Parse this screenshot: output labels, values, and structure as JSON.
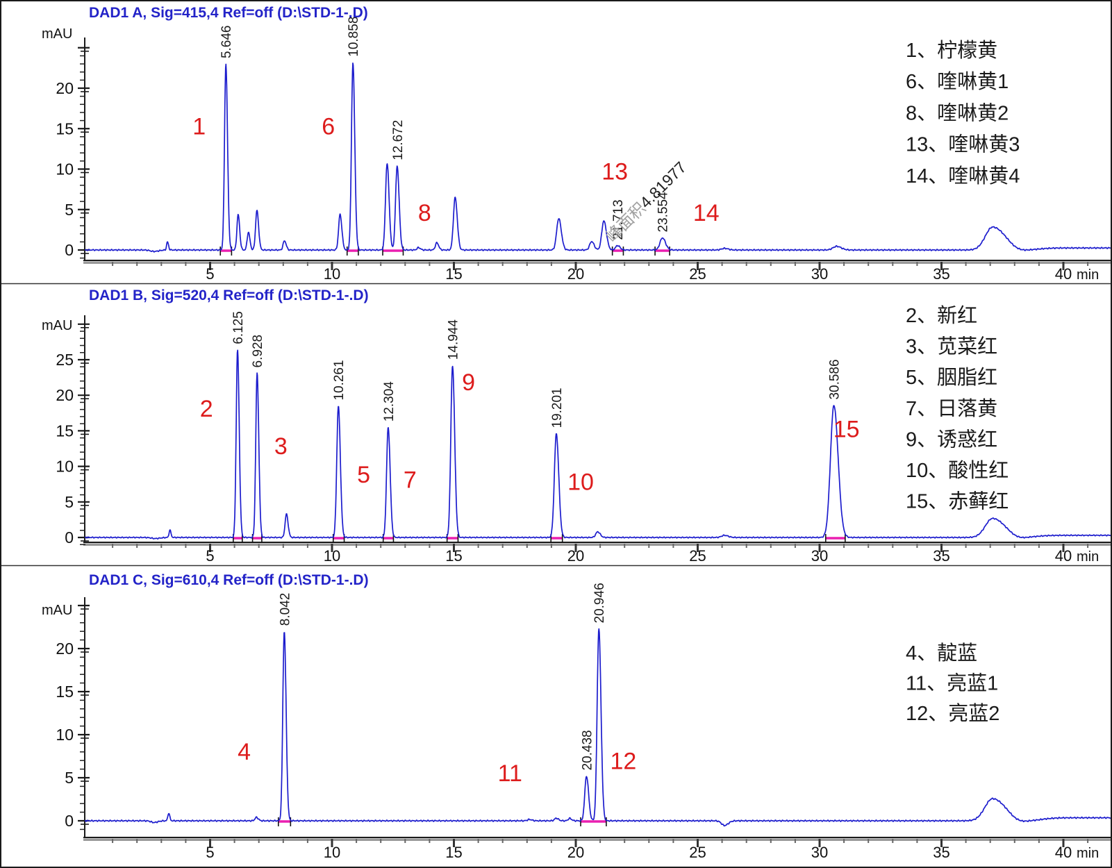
{
  "chart_data": [
    {
      "type": "line",
      "panel": "A",
      "title": "DAD1 A, Sig=415,4 Ref=off (D:\\STD-1-.D)",
      "xlabel": "min",
      "ylabel": "mAU",
      "xlim": [
        0,
        41.7
      ],
      "ylim": [
        -1.5,
        26
      ],
      "yticks": [
        0,
        5,
        10,
        15,
        20
      ],
      "xticks": [
        5,
        10,
        15,
        20,
        25,
        30,
        35,
        40
      ],
      "minor_step": 1,
      "trace_color": "#1c1ccd",
      "peaks": [
        [
          2.7,
          -0.18,
          0.15
        ],
        [
          3.25,
          1.0,
          0.035
        ],
        [
          5.646,
          23.0,
          0.055,
          "5.646"
        ],
        [
          6.15,
          4.4,
          0.05
        ],
        [
          6.57,
          2.2,
          0.05
        ],
        [
          6.92,
          4.9,
          0.055
        ],
        [
          8.05,
          1.15,
          0.055
        ],
        [
          10.33,
          4.4,
          0.06
        ],
        [
          10.858,
          23.2,
          0.06,
          "10.858"
        ],
        [
          12.26,
          10.7,
          0.065
        ],
        [
          12.672,
          10.4,
          0.065,
          "12.672"
        ],
        [
          13.55,
          0.3,
          0.06
        ],
        [
          14.3,
          0.9,
          0.06
        ],
        [
          15.05,
          6.5,
          0.07
        ],
        [
          19.3,
          3.9,
          0.085
        ],
        [
          20.65,
          1.05,
          0.08
        ],
        [
          21.15,
          3.6,
          0.085
        ],
        [
          21.713,
          0.55,
          0.08,
          "21.713"
        ],
        [
          23.554,
          1.5,
          0.1,
          "23.554"
        ],
        [
          26.1,
          0.2,
          0.12
        ],
        [
          30.7,
          0.45,
          0.15
        ],
        [
          37.1,
          2.85,
          0.3,
          null,
          1.8
        ],
        [
          38.3,
          -0.3,
          0.45
        ]
      ],
      "red_labels": [
        [
          "1",
          4.55,
          14.3
        ],
        [
          "6",
          9.85,
          14.3
        ],
        [
          "8",
          13.8,
          3.6
        ],
        [
          "13",
          21.6,
          8.7
        ],
        [
          "14",
          25.35,
          3.6
        ]
      ],
      "legend": [
        [
          "1",
          "柠檬黄"
        ],
        [
          "6",
          "喹啉黄1"
        ],
        [
          "8",
          "喹啉黄2"
        ],
        [
          "13",
          "喹啉黄3"
        ],
        [
          "14",
          "喹啉黄4"
        ]
      ],
      "integrations": [
        [
          5.42,
          5.88
        ],
        [
          10.62,
          11.08
        ],
        [
          12.08,
          12.92
        ],
        [
          21.5,
          21.95
        ],
        [
          23.25,
          23.85
        ]
      ],
      "watermark": {
        "gray": "峰面积",
        "black": "4.81977"
      },
      "baseline_rise": 0.25
    },
    {
      "type": "line",
      "panel": "B",
      "title": "DAD1 B, Sig=520,4 Ref=off (D:\\STD-1-.D)",
      "xlabel": "min",
      "ylabel": "mAU",
      "xlim": [
        0,
        41.7
      ],
      "ylim": [
        -1.5,
        30
      ],
      "yticks": [
        0,
        5,
        10,
        15,
        20,
        25
      ],
      "xticks": [
        5,
        10,
        15,
        20,
        25,
        30,
        35,
        40
      ],
      "minor_step": 1,
      "trace_color": "#1c1ccd",
      "peaks": [
        [
          2.75,
          -0.15,
          0.15
        ],
        [
          3.35,
          1.05,
          0.035
        ],
        [
          6.125,
          26.4,
          0.055,
          "6.125"
        ],
        [
          6.928,
          23.1,
          0.055,
          "6.928"
        ],
        [
          8.13,
          3.3,
          0.055
        ],
        [
          10.261,
          18.5,
          0.065,
          "10.261"
        ],
        [
          12.304,
          15.5,
          0.065,
          "12.304"
        ],
        [
          14.944,
          24.2,
          0.07,
          "14.944"
        ],
        [
          19.201,
          14.6,
          0.08,
          "19.201"
        ],
        [
          20.9,
          0.8,
          0.08
        ],
        [
          26.1,
          0.3,
          0.12
        ],
        [
          30.586,
          18.6,
          0.14,
          "30.586"
        ],
        [
          37.1,
          2.7,
          0.3,
          null,
          1.8
        ],
        [
          38.2,
          -0.35,
          0.45
        ]
      ],
      "red_labels": [
        [
          "2",
          4.85,
          17.0
        ],
        [
          "3",
          7.9,
          11.7
        ],
        [
          "5",
          11.3,
          7.7
        ],
        [
          "7",
          13.2,
          7.0
        ],
        [
          "9",
          15.6,
          20.7
        ],
        [
          "10",
          20.2,
          6.7
        ],
        [
          "15",
          31.1,
          14.1
        ]
      ],
      "legend": [
        [
          "2",
          "新红"
        ],
        [
          "3",
          "苋菜红"
        ],
        [
          "5",
          "胭脂红"
        ],
        [
          "7",
          "日落黄"
        ],
        [
          "9",
          "诱惑红"
        ],
        [
          "10",
          "酸性红"
        ],
        [
          "15",
          "赤藓红"
        ]
      ],
      "integrations": [
        [
          5.95,
          6.32
        ],
        [
          6.74,
          7.12
        ],
        [
          10.05,
          10.5
        ],
        [
          12.1,
          12.52
        ],
        [
          14.72,
          15.17
        ],
        [
          18.98,
          19.45
        ],
        [
          30.25,
          31.05
        ]
      ],
      "watermark": null,
      "baseline_rise": 0.3
    },
    {
      "type": "line",
      "panel": "C",
      "title": "DAD1 C, Sig=610,4 Ref=off (D:\\STD-1-.D)",
      "xlabel": "min",
      "ylabel": "mAU",
      "xlim": [
        0,
        41.7
      ],
      "ylim": [
        -2,
        24
      ],
      "yticks": [
        0,
        5,
        10,
        15,
        20
      ],
      "xticks": [
        5,
        10,
        15,
        20,
        25,
        30,
        35,
        40
      ],
      "minor_step": 1,
      "trace_color": "#1c1ccd",
      "peaks": [
        [
          2.7,
          -0.2,
          0.12
        ],
        [
          3.3,
          0.9,
          0.035
        ],
        [
          6.9,
          0.4,
          0.06
        ],
        [
          8.042,
          22.0,
          0.06,
          "8.042"
        ],
        [
          18.1,
          0.15,
          0.08
        ],
        [
          19.2,
          0.3,
          0.07
        ],
        [
          19.75,
          0.28,
          0.06
        ],
        [
          20.438,
          5.2,
          0.07,
          "20.438"
        ],
        [
          20.946,
          22.3,
          0.07,
          "20.946"
        ],
        [
          26.1,
          -0.55,
          0.12
        ],
        [
          37.1,
          2.6,
          0.32,
          null,
          1.8
        ],
        [
          38.3,
          -0.45,
          0.5
        ]
      ],
      "red_labels": [
        [
          "4",
          6.4,
          7.1
        ],
        [
          "11",
          17.3,
          4.6
        ],
        [
          "12",
          21.95,
          6.0
        ]
      ],
      "legend": [
        [
          "4",
          "靛蓝"
        ],
        [
          "11",
          "亮蓝1"
        ],
        [
          "12",
          "亮蓝2"
        ]
      ],
      "integrations": [
        [
          7.8,
          8.3
        ],
        [
          20.2,
          21.25
        ]
      ],
      "watermark": null,
      "baseline_rise": 0.35
    }
  ],
  "colors": {
    "trace": "#1c1ccd",
    "title": "#2323c8",
    "red_annotation": "#dd1c1c",
    "integration_magenta": "#ea1fb0",
    "axis": "#1a1a1a",
    "watermark_gray": "#a0a0a0"
  }
}
